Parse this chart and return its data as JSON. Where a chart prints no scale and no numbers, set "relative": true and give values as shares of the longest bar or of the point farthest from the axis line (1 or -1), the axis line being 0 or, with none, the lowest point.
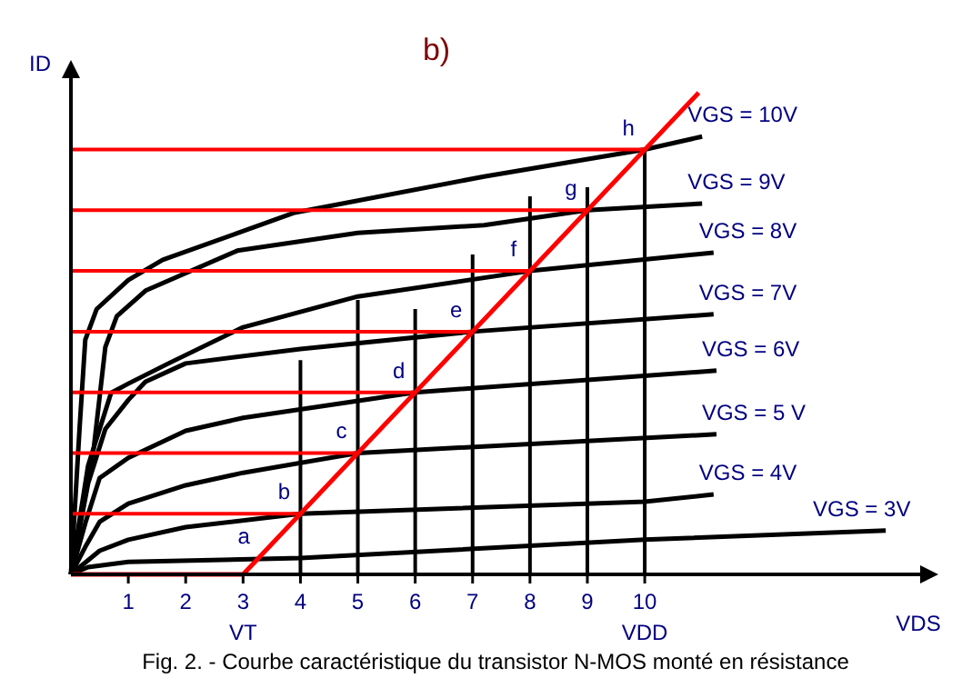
{
  "chart_data": {
    "type": "line",
    "title": "b)",
    "xlabel": "VDS",
    "ylabel": "ID",
    "relative": true,
    "xlim": [
      0,
      14.8
    ],
    "xticks": [
      1,
      2,
      {
        "value": 3,
        "label": "3\nVT"
      },
      4,
      5,
      6,
      7,
      8,
      9,
      {
        "value": 10,
        "label": "10\nVDD"
      }
    ],
    "grid": false,
    "legend": false,
    "marker": "none",
    "line_style": "solid",
    "series": [
      {
        "name": "VGS = 10V",
        "color": "#000000",
        "x": [
          0,
          0.15,
          0.25,
          0.45,
          1,
          1.6,
          3.9,
          7.2,
          10,
          11
        ],
        "values": [
          0,
          0.302,
          0.487,
          0.551,
          0.611,
          0.653,
          0.751,
          0.826,
          0.882,
          0.909
        ]
      },
      {
        "name": "VGS = 9V",
        "color": "#000000",
        "x": [
          0,
          0.4,
          0.6,
          0.8,
          1.3,
          2.9,
          5,
          7.2,
          9,
          11
        ],
        "values": [
          0,
          0.264,
          0.472,
          0.536,
          0.589,
          0.672,
          0.709,
          0.725,
          0.756,
          0.77
        ]
      },
      {
        "name": "VGS = 8V",
        "color": "#000000",
        "x": [
          0,
          0.3,
          0.7,
          1,
          1.7,
          3,
          5,
          8,
          11.2
        ],
        "values": [
          0,
          0.226,
          0.377,
          0.396,
          0.438,
          0.513,
          0.577,
          0.63,
          0.668
        ]
      },
      {
        "name": "VGS = 7V",
        "color": "#000000",
        "x": [
          0,
          0.3,
          0.6,
          1,
          1.3,
          2,
          4,
          7,
          11.2
        ],
        "values": [
          0,
          0.189,
          0.302,
          0.362,
          0.4,
          0.438,
          0.468,
          0.504,
          0.54
        ]
      },
      {
        "name": "VGS = 6V",
        "color": "#000000",
        "x": [
          0,
          0.25,
          0.5,
          1,
          2,
          3,
          6,
          11.25
        ],
        "values": [
          0,
          0.106,
          0.2,
          0.242,
          0.298,
          0.325,
          0.378,
          0.423
        ]
      },
      {
        "name": "VGS = 5 V",
        "color": "#000000",
        "x": [
          0,
          0.25,
          0.5,
          1,
          2,
          3,
          5,
          11.25
        ],
        "values": [
          0,
          0.057,
          0.109,
          0.147,
          0.185,
          0.211,
          0.252,
          0.291
        ]
      },
      {
        "name": "VGS = 4V",
        "color": "#000000",
        "x": [
          0,
          0.5,
          1,
          2,
          4,
          10,
          11.2
        ],
        "values": [
          0,
          0.049,
          0.072,
          0.098,
          0.126,
          0.151,
          0.166
        ]
      },
      {
        "name": "VGS = 3V",
        "color": "#000000",
        "x": [
          0,
          0.3,
          1,
          4,
          10,
          14.2
        ],
        "values": [
          0,
          0.015,
          0.026,
          0.034,
          0.072,
          0.091
        ]
      },
      {
        "color": "#000000",
        "x": [
          4,
          4
        ],
        "values": [
          0,
          0.445
        ]
      },
      {
        "color": "#000000",
        "x": [
          5,
          5
        ],
        "values": [
          0,
          0.57
        ]
      },
      {
        "color": "#000000",
        "x": [
          6,
          6
        ],
        "values": [
          0,
          0.551
        ]
      },
      {
        "color": "#000000",
        "x": [
          7,
          7
        ],
        "values": [
          0,
          0.664
        ]
      },
      {
        "color": "#000000",
        "x": [
          8,
          8
        ],
        "values": [
          0,
          0.785
        ]
      },
      {
        "color": "#000000",
        "x": [
          9,
          9
        ],
        "values": [
          0,
          0.804
        ]
      },
      {
        "color": "#000000",
        "x": [
          10,
          10
        ],
        "values": [
          0,
          0.882
        ]
      },
      {
        "color": "#ff0000",
        "x": [
          0,
          4
        ],
        "values": [
          0.126,
          0.126
        ]
      },
      {
        "color": "#ff0000",
        "x": [
          0,
          5
        ],
        "values": [
          0.252,
          0.252
        ]
      },
      {
        "color": "#ff0000",
        "x": [
          0,
          6
        ],
        "values": [
          0.378,
          0.378
        ]
      },
      {
        "color": "#ff0000",
        "x": [
          0,
          7
        ],
        "values": [
          0.504,
          0.504
        ]
      },
      {
        "color": "#ff0000",
        "x": [
          0,
          8
        ],
        "values": [
          0.63,
          0.63
        ]
      },
      {
        "color": "#ff0000",
        "x": [
          0,
          9
        ],
        "values": [
          0.756,
          0.756
        ]
      },
      {
        "color": "#ff0000",
        "x": [
          0,
          10
        ],
        "values": [
          0.882,
          0.882
        ]
      },
      {
        "color": "#ff0000",
        "x": [
          0,
          3,
          10.94
        ],
        "values": [
          0,
          0,
          1
        ]
      }
    ],
    "annotations": [
      {
        "text": "a",
        "x": 3.3,
        "y": 0.034
      },
      {
        "text": "b",
        "x": 4,
        "y": 0.126
      },
      {
        "text": "c",
        "x": 5,
        "y": 0.252
      },
      {
        "text": "d",
        "x": 6,
        "y": 0.378
      },
      {
        "text": "e",
        "x": 7,
        "y": 0.504
      },
      {
        "text": "f",
        "x": 8,
        "y": 0.63
      },
      {
        "text": "g",
        "x": 9,
        "y": 0.756
      },
      {
        "text": "h",
        "x": 10,
        "y": 0.882
      },
      "Fig. 2. - Courbe caractéristique du transistor N-MOS monté en résistance"
    ]
  }
}
